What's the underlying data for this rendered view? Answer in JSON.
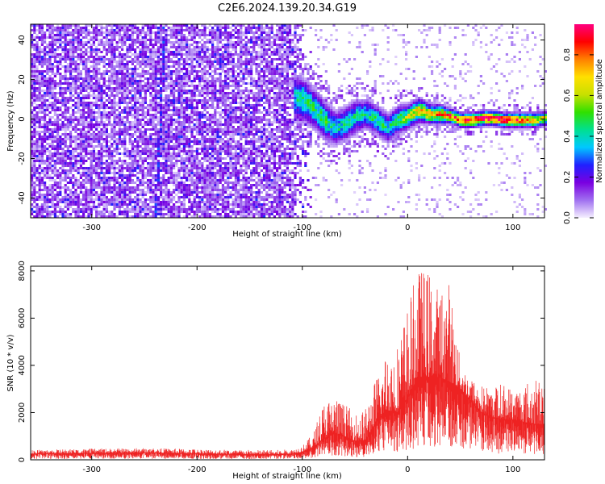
{
  "figure": {
    "title": "C2E6.2024.139.20.34.G19"
  },
  "chart_data": [
    {
      "type": "heatmap",
      "title": "C2E6.2024.139.20.34.G19",
      "xlabel": "Height of straight line (km)",
      "ylabel": "Frequency (Hz)",
      "xlim": [
        -358,
        130
      ],
      "ylim": [
        -50,
        48
      ],
      "x_ticks": [
        -300,
        -200,
        -100,
        0,
        100
      ],
      "x_tick_labels": [
        "-300",
        "-200",
        "-100",
        "0",
        "100"
      ],
      "y_ticks": [
        -40,
        -20,
        0,
        20,
        40
      ],
      "y_tick_labels": [
        "-40",
        "-20",
        "0",
        "20",
        "40"
      ],
      "colorbar": {
        "label": "Normalized spectral amplitude",
        "range": [
          0,
          0.95
        ],
        "ticks": [
          0.0,
          0.2,
          0.4,
          0.6,
          0.8
        ],
        "tick_labels": [
          "0.0",
          "0.2",
          "0.4",
          "0.6",
          "0.8"
        ],
        "colors": [
          "#f5f0ff",
          "#a070f0",
          "#7a00e0",
          "#2020ff",
          "#00c8ff",
          "#00e090",
          "#30e000",
          "#c8e000",
          "#ffe000",
          "#ff8000",
          "#ff0000",
          "#ff0080"
        ]
      },
      "features": {
        "noise_region_x": [
          -358,
          -90
        ],
        "noise_level": 0.18,
        "faint_diagonal_track": {
          "x": [
            -240,
            -232
          ],
          "freq": [
            -50,
            48
          ]
        },
        "signal_track": {
          "x": [
            -110,
            -100,
            -90,
            -80,
            -70,
            -60,
            -50,
            -40,
            -30,
            -20,
            -10,
            0,
            10,
            20,
            30,
            40,
            50,
            60,
            70,
            80,
            90,
            100,
            110,
            120,
            130
          ],
          "freq": [
            12,
            10,
            6,
            0,
            -4,
            -2,
            2,
            3,
            0,
            -4,
            0,
            2,
            5,
            3,
            3,
            2,
            0,
            0,
            1,
            1,
            0,
            0,
            0,
            0,
            1
          ],
          "peak": [
            0.35,
            0.45,
            0.45,
            0.45,
            0.4,
            0.4,
            0.4,
            0.4,
            0.45,
            0.4,
            0.45,
            0.6,
            0.65,
            0.7,
            0.72,
            0.8,
            0.85,
            0.88,
            0.9,
            0.9,
            0.9,
            0.88,
            0.85,
            0.7,
            0.6
          ],
          "spread": [
            10,
            9,
            8,
            8,
            7,
            7,
            7,
            6,
            6,
            6,
            6,
            5,
            5,
            4,
            4,
            3,
            3,
            3,
            3,
            3,
            3,
            3,
            3,
            3,
            3
          ]
        }
      }
    },
    {
      "type": "line",
      "xlabel": "Height of straight line (km)",
      "ylabel": "SNR (10 * v/v)",
      "xlim": [
        -358,
        130
      ],
      "ylim": [
        0,
        8200
      ],
      "x_ticks": [
        -300,
        -200,
        -100,
        0,
        100
      ],
      "x_tick_labels": [
        "-300",
        "-200",
        "-100",
        "0",
        "100"
      ],
      "y_ticks": [
        0,
        2000,
        4000,
        6000,
        8000
      ],
      "y_tick_labels": [
        "0",
        "2000",
        "4000",
        "6000",
        "8000"
      ],
      "color": "#ee2222",
      "series": [
        {
          "x": [
            -358,
            -300,
            -250,
            -200,
            -150,
            -120,
            -110,
            -100,
            -90,
            -80,
            -70,
            -60,
            -50,
            -40,
            -30,
            -20,
            -10,
            0,
            10,
            20,
            30,
            40,
            50,
            60,
            70,
            80,
            90,
            100,
            110,
            120,
            130
          ],
          "values": [
            250,
            280,
            300,
            260,
            220,
            230,
            250,
            330,
            500,
            900,
            1100,
            1000,
            800,
            800,
            1600,
            2100,
            2000,
            2600,
            3500,
            3500,
            3500,
            3300,
            3000,
            2500,
            2000,
            1800,
            1700,
            1700,
            1600,
            1500,
            1500
          ],
          "peak_envelope": [
            420,
            470,
            500,
            460,
            420,
            420,
            450,
            600,
            1100,
            2500,
            2800,
            2400,
            2000,
            2200,
            3500,
            4700,
            5000,
            6600,
            8200,
            8100,
            7300,
            7700,
            4200,
            3500,
            3200,
            3100,
            3300,
            3100,
            3300,
            3500,
            3400
          ]
        }
      ]
    }
  ]
}
